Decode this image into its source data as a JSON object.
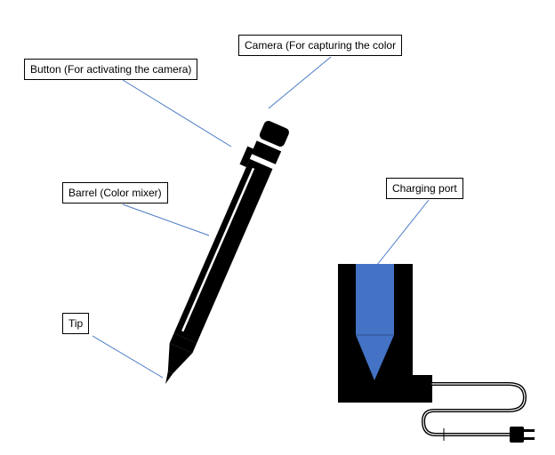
{
  "labels": {
    "camera": "Camera (For capturing the color",
    "button": "Button (For activating the camera)",
    "barrel": "Barrel (Color mixer)",
    "tip": "Tip",
    "charging_port": "Charging port"
  },
  "colors": {
    "leader_line": "#4a7bc4",
    "port_fill": "#4472c4",
    "pen": "#000000"
  }
}
